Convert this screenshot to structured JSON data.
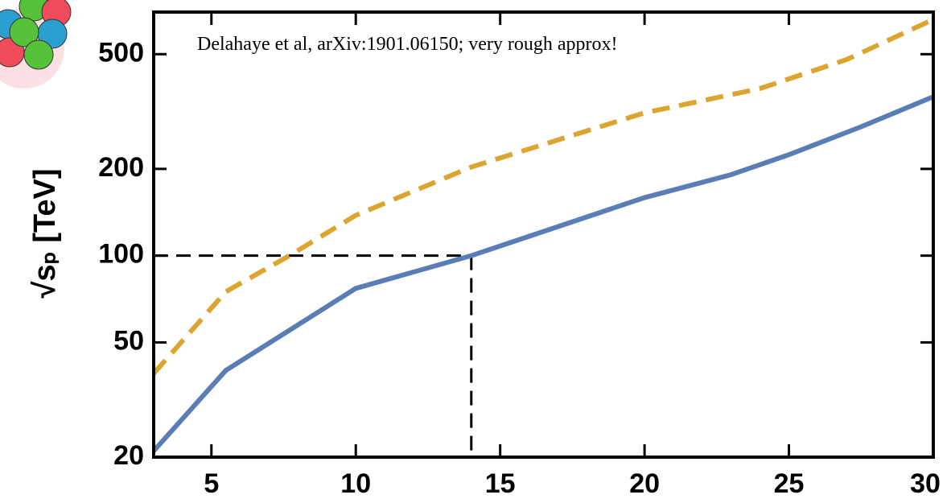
{
  "chart_data": {
    "type": "line",
    "annotation": "Delahaye et al, arXiv:1901.06150; very rough approx!",
    "y_label": "√sₚ  [TeV]",
    "y_log": true,
    "xlim": [
      3,
      30
    ],
    "xticks": [
      5,
      10,
      15,
      20,
      25,
      30
    ],
    "ylim": [
      20,
      700
    ],
    "yticks": [
      20,
      50,
      100,
      200,
      500
    ],
    "series": [
      {
        "color": "#5b7db5",
        "dash": false,
        "x": [
          3,
          5.5,
          10,
          14,
          20,
          23,
          25,
          27.5,
          30
        ],
        "values": [
          21,
          40,
          77,
          100,
          159,
          191,
          224,
          280,
          356
        ]
      },
      {
        "color": "#dba530",
        "dash": true,
        "x": [
          3,
          5.5,
          7.7,
          10,
          14,
          20,
          24,
          27,
          30
        ],
        "values": [
          39,
          75,
          100,
          138,
          203,
          313,
          380,
          479,
          660
        ]
      }
    ],
    "reference": {
      "x": 14,
      "y": 100,
      "color": "#000000"
    }
  }
}
